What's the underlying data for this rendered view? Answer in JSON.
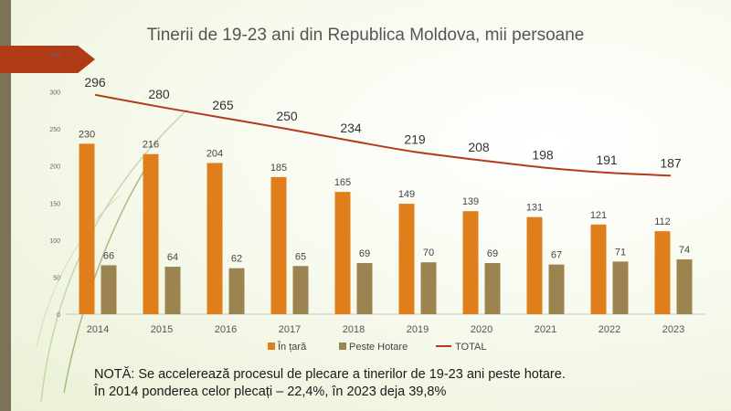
{
  "chart_data": {
    "type": "bar",
    "title": "Tinerii de 19-23 ani din Republica Moldova, mii persoane",
    "categories": [
      "2014",
      "2015",
      "2016",
      "2017",
      "2018",
      "2019",
      "2020",
      "2021",
      "2022",
      "2023"
    ],
    "series": [
      {
        "name": "În țară",
        "type": "bar",
        "color": "#e07e1c",
        "values": [
          230,
          216,
          204,
          185,
          165,
          149,
          139,
          131,
          121,
          112
        ]
      },
      {
        "name": "Peste Hotare",
        "type": "bar",
        "color": "#9c8451",
        "values": [
          66,
          64,
          62,
          65,
          69,
          70,
          69,
          67,
          71,
          74
        ]
      },
      {
        "name": "TOTAL",
        "type": "line",
        "color": "#b5391a",
        "values": [
          296,
          280,
          265,
          250,
          234,
          219,
          208,
          198,
          191,
          187
        ]
      }
    ],
    "yticks": [
      0,
      50,
      100,
      150,
      200,
      250,
      300,
      350
    ],
    "ylim": [
      0,
      350
    ],
    "grid": false,
    "legend": "bottom"
  },
  "note": {
    "line1": "NOTĂ: Se accelerează procesul de plecare a tinerilor de 19-23 ani peste hotare.",
    "line2": "În 2014 ponderea celor plecați – 22,4%, în 2023 deja 39,8%"
  },
  "colors": {
    "accent_red": "#b23b17",
    "side_bar": "#7d7257"
  }
}
